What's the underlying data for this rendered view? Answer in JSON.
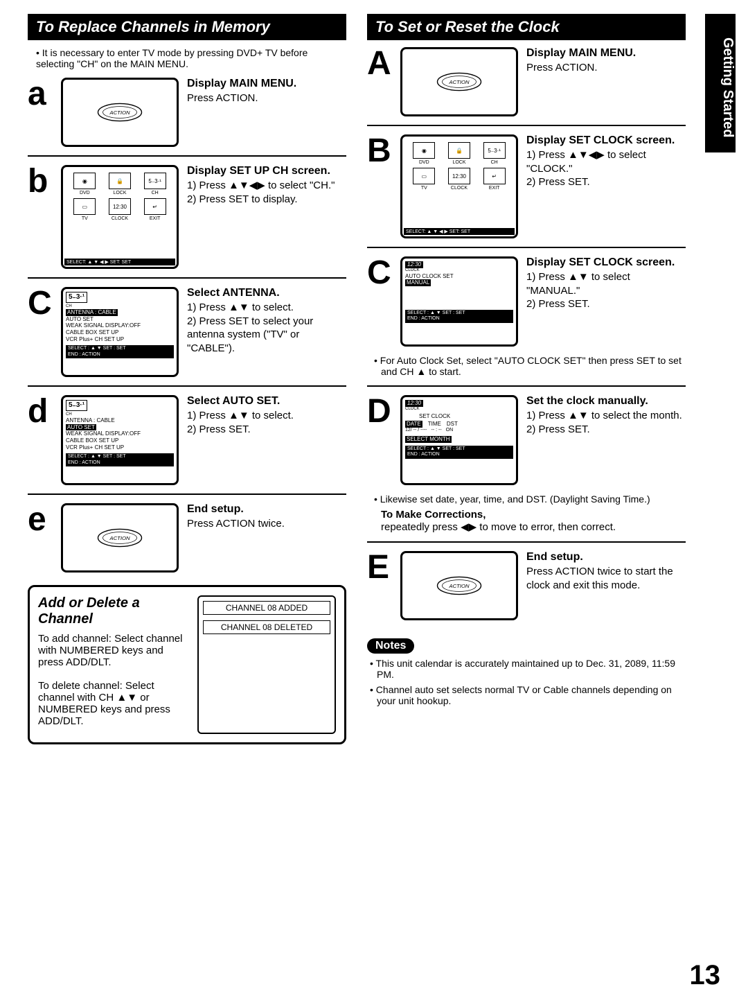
{
  "side_tab": "Getting Started",
  "page_number": "13",
  "arrows": {
    "ud": "▲▼",
    "lr": "◀▶",
    "all": "▲▼◀▶",
    "up": "▲"
  },
  "left": {
    "header": "To Replace Channels in Memory",
    "intro": "It is necessary to enter TV mode by pressing DVD+ TV before selecting \"CH\" on the MAIN MENU.",
    "steps": {
      "a": {
        "letter": "a",
        "title": "Display MAIN MENU.",
        "body": "Press ACTION."
      },
      "b": {
        "letter": "b",
        "title": "Display SET UP CH screen.",
        "line1": "1) Press ▲▼◀▶ to select \"CH.\"",
        "line2": "2) Press SET to display."
      },
      "c": {
        "letter": "c",
        "title": "Select ANTENNA.",
        "line1": "1) Press ▲▼ to select.",
        "line2": "2) Press SET to select your antenna system (\"TV\" or \"CABLE\")."
      },
      "d": {
        "letter": "d",
        "title": "Select AUTO SET.",
        "line1": "1) Press ▲▼ to select.",
        "line2": "2) Press SET."
      },
      "e": {
        "letter": "e",
        "title": "End setup.",
        "body": "Press ACTION twice."
      }
    },
    "osd_b": {
      "cells": [
        "DVD",
        "LOCK",
        "CH",
        "TV",
        "CLOCK",
        "EXIT"
      ],
      "ch_num": "5₋3·¹",
      "clock": "12:30",
      "foot": "SELECT: ▲ ▼ ◀ ▶   SET:  SET"
    },
    "osd_c": {
      "ch_num": "5₋3·¹",
      "ch_label": "CH",
      "lines": [
        "ANTENNA  :  CABLE",
        "AUTO SET",
        "WEAK SIGNAL DISPLAY:OFF",
        "CABLE BOX SET UP",
        "VCR Plus+ CH SET UP"
      ],
      "highlight_idx": 0,
      "foot1": "SELECT : ▲ ▼        SET : SET",
      "foot2": "END     : ACTION"
    },
    "osd_d": {
      "ch_num": "5₋3·¹",
      "ch_label": "CH",
      "lines": [
        "ANTENNA  :  CABLE",
        "AUTO SET",
        "WEAK SIGNAL DISPLAY:OFF",
        "CABLE BOX SET UP",
        "VCR Plus+ CH SET UP"
      ],
      "highlight_idx": 1,
      "foot1": "SELECT : ▲ ▼        SET : SET",
      "foot2": "END     : ACTION"
    },
    "addbox": {
      "title": "Add or Delete a Channel",
      "p1": "To add channel: Select channel with NUMBERED keys and press ADD/DLT.",
      "p2": "To delete channel: Select channel with CH ▲▼ or NUMBERED keys and press ADD/DLT.",
      "r1": "CHANNEL  08  ADDED",
      "r2": "CHANNEL  08  DELETED"
    }
  },
  "right": {
    "header": "To Set or Reset the Clock",
    "steps": {
      "A": {
        "letter": "A",
        "title": "Display MAIN MENU.",
        "body": "Press ACTION."
      },
      "B": {
        "letter": "B",
        "title": "Display SET CLOCK screen.",
        "line1": "1) Press ▲▼◀▶ to select \"CLOCK.\"",
        "line2": "2) Press SET."
      },
      "C": {
        "letter": "C",
        "title": "Display SET CLOCK screen.",
        "line1": "1) Press ▲▼ to select \"MANUAL.\"",
        "line2": "2) Press SET."
      },
      "D": {
        "letter": "D",
        "title": "Set the clock manually.",
        "line1": "1) Press ▲▼ to select the month.",
        "line2": "2) Press SET."
      },
      "E": {
        "letter": "E",
        "title": "End setup.",
        "body": "Press ACTION twice to start the clock and exit this mode."
      }
    },
    "osd_B": {
      "cells": [
        "DVD",
        "LOCK",
        "CH",
        "TV",
        "CLOCK",
        "EXIT"
      ],
      "ch_num": "5₋3·¹",
      "clock": "12:30",
      "foot": "SELECT: ▲ ▼ ◀ ▶   SET:  SET"
    },
    "osd_C": {
      "clock": "12:30",
      "clock_lbl": "CLOCK",
      "lines": [
        "AUTO CLOCK SET",
        "MANUAL"
      ],
      "highlight_idx": 1,
      "foot1": "SELECT : ▲ ▼        SET : SET",
      "foot2": "END     : ACTION"
    },
    "c_note": "For Auto Clock Set, select \"AUTO CLOCK SET\" then press SET to set and CH ▲ to start.",
    "osd_D": {
      "clock": "12:30",
      "clock_lbl": "CLOCK",
      "title": "SET CLOCK",
      "hdrs": [
        "DATE",
        "TIME",
        "DST"
      ],
      "row": [
        "12/ -- / ----",
        "-- : --",
        "ON"
      ],
      "sel": "SELECT  MONTH",
      "foot1": "SELECT : ▲ ▼        SET : SET",
      "foot2": "END     : ACTION"
    },
    "d_note": "Likewise set date, year, time, and DST. (Daylight Saving Time.)",
    "corrections_title": "To Make Corrections,",
    "corrections_body": "repeatedly press ◀▶ to move to error, then correct.",
    "notes_label": "Notes",
    "notes": [
      "This unit calendar is accurately maintained up to Dec. 31, 2089, 11:59 PM.",
      "Channel auto set selects normal TV or Cable channels depending on your unit hookup."
    ]
  }
}
